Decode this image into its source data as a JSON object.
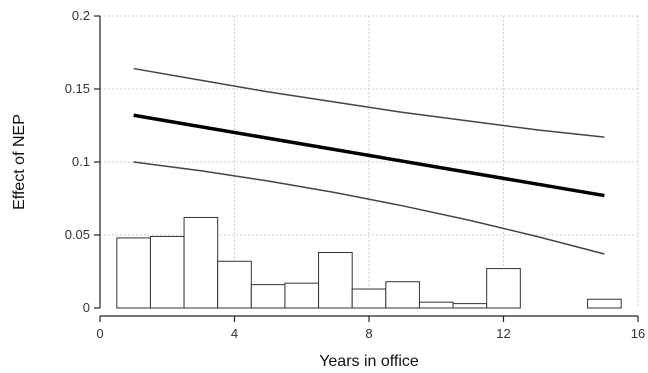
{
  "chart_data": {
    "type": "line",
    "xlabel": "Years in office",
    "ylabel": "Effect of NEP",
    "xlim": [
      0,
      16
    ],
    "ylim": [
      0,
      0.2
    ],
    "x_ticks": [
      "0",
      "4",
      "8",
      "12",
      "16"
    ],
    "y_ticks": [
      "0",
      "0.05",
      "0.1",
      "0.15",
      "0.2"
    ],
    "x_tick_values": [
      0,
      4,
      8,
      12,
      16
    ],
    "y_tick_values": [
      0,
      0.05,
      0.1,
      0.15,
      0.2
    ],
    "grid": true,
    "series": [
      {
        "role": "estimate",
        "x": [
          1,
          15
        ],
        "y": [
          0.132,
          0.077
        ],
        "color": "#000000"
      },
      {
        "role": "upper-ci",
        "x": [
          1,
          3,
          5,
          7,
          9,
          11,
          13,
          15
        ],
        "y": [
          0.164,
          0.156,
          0.148,
          0.141,
          0.134,
          0.128,
          0.122,
          0.117
        ],
        "color": "#444444"
      },
      {
        "role": "lower-ci",
        "x": [
          1,
          3,
          5,
          7,
          9,
          11,
          13,
          15
        ],
        "y": [
          0.1,
          0.094,
          0.087,
          0.079,
          0.07,
          0.06,
          0.049,
          0.037
        ],
        "color": "#444444"
      }
    ],
    "histogram": {
      "bins": [
        {
          "x0": 0.5,
          "x1": 1.5,
          "value": 0.048
        },
        {
          "x0": 1.5,
          "x1": 2.5,
          "value": 0.049
        },
        {
          "x0": 2.5,
          "x1": 3.5,
          "value": 0.062
        },
        {
          "x0": 3.5,
          "x1": 4.5,
          "value": 0.032
        },
        {
          "x0": 4.5,
          "x1": 5.5,
          "value": 0.016
        },
        {
          "x0": 5.5,
          "x1": 6.5,
          "value": 0.017
        },
        {
          "x0": 6.5,
          "x1": 7.5,
          "value": 0.038
        },
        {
          "x0": 7.5,
          "x1": 8.5,
          "value": 0.013
        },
        {
          "x0": 8.5,
          "x1": 9.5,
          "value": 0.018
        },
        {
          "x0": 9.5,
          "x1": 10.5,
          "value": 0.004
        },
        {
          "x0": 10.5,
          "x1": 11.5,
          "value": 0.003
        },
        {
          "x0": 11.5,
          "x1": 12.5,
          "value": 0.027
        },
        {
          "x0": 14.5,
          "x1": 15.5,
          "value": 0.006
        }
      ]
    }
  }
}
